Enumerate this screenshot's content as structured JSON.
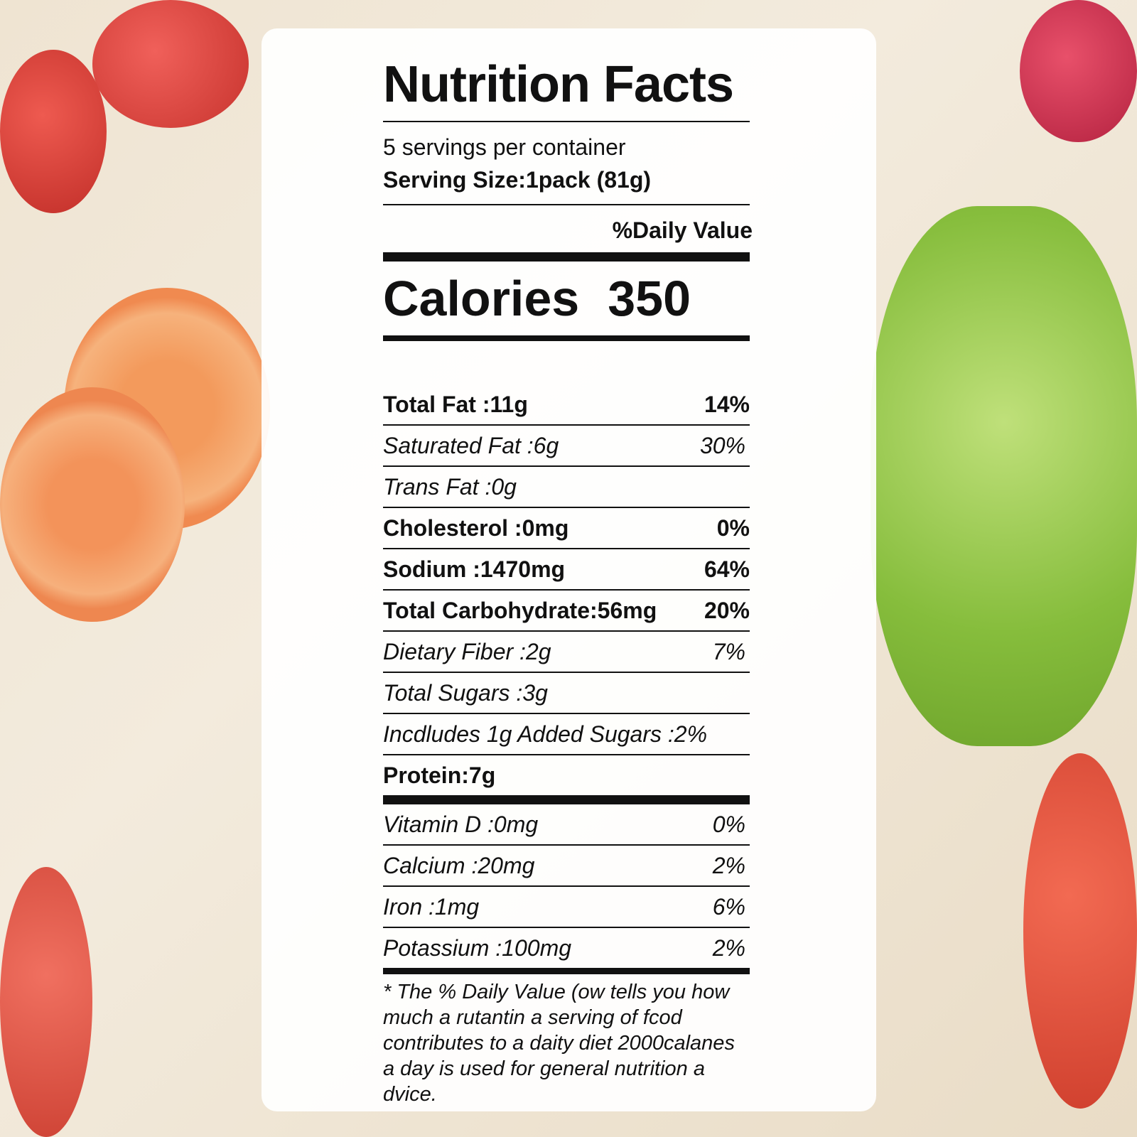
{
  "title": "Nutrition Facts",
  "servings_per_container": "5 servings per container",
  "serving_size": "Serving Size:1pack (81g)",
  "daily_value_header": "%Daily Value",
  "calories": {
    "label": "Calories",
    "value": "350"
  },
  "nutrients": [
    {
      "label": "Total Fat :11g",
      "percent": "14%",
      "weight": "bold"
    },
    {
      "label": "Saturated Fat :6g",
      "percent": "30%",
      "weight": "italic"
    },
    {
      "label": "Trans Fat  :0g",
      "percent": "",
      "weight": "italic"
    },
    {
      "label": "Cholesterol :0mg",
      "percent": "0%",
      "weight": "bold"
    },
    {
      "label": "Sodium :1470mg",
      "percent": "64%",
      "weight": "bold"
    },
    {
      "label": "Total Carbohydrate:56mg",
      "percent": "20%",
      "weight": "bold"
    },
    {
      "label": "Dietary Fiber  :2g",
      "percent": "7%",
      "weight": "italic"
    },
    {
      "label": "Total Sugars :3g",
      "percent": "",
      "weight": "italic"
    },
    {
      "label": "Incdludes 1g Added Sugars :2%",
      "percent": "",
      "weight": "italic"
    },
    {
      "label": "Protein:7g",
      "percent": "",
      "weight": "bold"
    }
  ],
  "vitamins": [
    {
      "label": "Vitamin D :0mg",
      "percent": "0%"
    },
    {
      "label": "Calcium :20mg",
      "percent": "2%"
    },
    {
      "label": "Iron :1mg",
      "percent": "6%"
    },
    {
      "label": "Potassium :100mg",
      "percent": "2%"
    }
  ],
  "footnote": "* The % Daily Value (ow tells you how much a rutantin a serving of fcod contributes to a daity diet 2000calanes a day is used for general nutrition a dvice."
}
